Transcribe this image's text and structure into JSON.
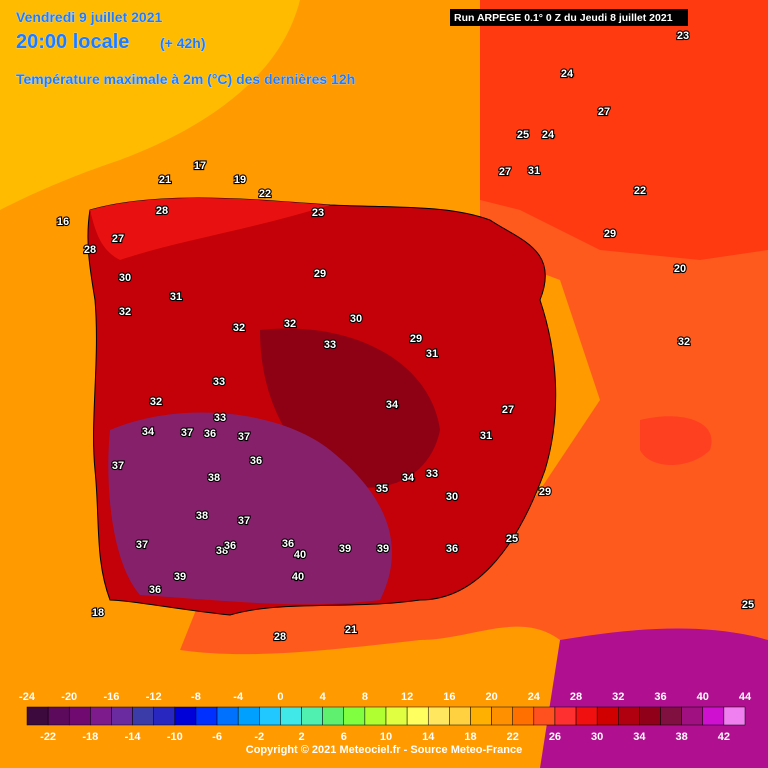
{
  "header": {
    "date": "Vendredi 9 juillet 2021",
    "time": "20:00 locale",
    "lead": "(+ 42h)",
    "title": "Température maximale à 2m (°C) des dernières 12h",
    "run": "Run ARPEGE 0.1° 0 Z du Jeudi 8 juillet 2021"
  },
  "labels": [
    17,
    21,
    28,
    22,
    19,
    23,
    27,
    28,
    30,
    29,
    32,
    31,
    32,
    32,
    30,
    29,
    33,
    31,
    33,
    34,
    32,
    34,
    33,
    37,
    37,
    36,
    38,
    37,
    36,
    38,
    37,
    38,
    36,
    40,
    40,
    39,
    39,
    37,
    36,
    35,
    33,
    34,
    30,
    31,
    29,
    27,
    25,
    24,
    25,
    27,
    24,
    31,
    27,
    32,
    29,
    23,
    22,
    20,
    21,
    25,
    28,
    36,
    18,
    16,
    36,
    39
  ],
  "legend": {
    "ticks": [
      -24,
      -22,
      -20,
      -18,
      -16,
      -14,
      -12,
      -10,
      -8,
      -6,
      -4,
      -2,
      0,
      2,
      4,
      6,
      8,
      10,
      12,
      14,
      16,
      18,
      20,
      22,
      24,
      26,
      28,
      30,
      32,
      34,
      36,
      38,
      40,
      42,
      44
    ],
    "colors": [
      "#3c0a3c",
      "#5c0a5c",
      "#700a70",
      "#7d1a8c",
      "#6a2aa0",
      "#3c3ca8",
      "#2828c0",
      "#0000d8",
      "#0030ff",
      "#0070ff",
      "#00a0ff",
      "#20c8ff",
      "#40e8e8",
      "#50f0b0",
      "#60f070",
      "#80ff40",
      "#b0ff30",
      "#e0ff40",
      "#ffff60",
      "#ffe860",
      "#ffd040",
      "#ffb000",
      "#ff9000",
      "#ff7000",
      "#ff5020",
      "#ff3030",
      "#f01010",
      "#d00000",
      "#b00010",
      "#900018",
      "#801040",
      "#a01080",
      "#d010d0",
      "#f080f0"
    ]
  },
  "footer": "Copyright © 2021 Meteociel.fr - Source Meteo-France"
}
